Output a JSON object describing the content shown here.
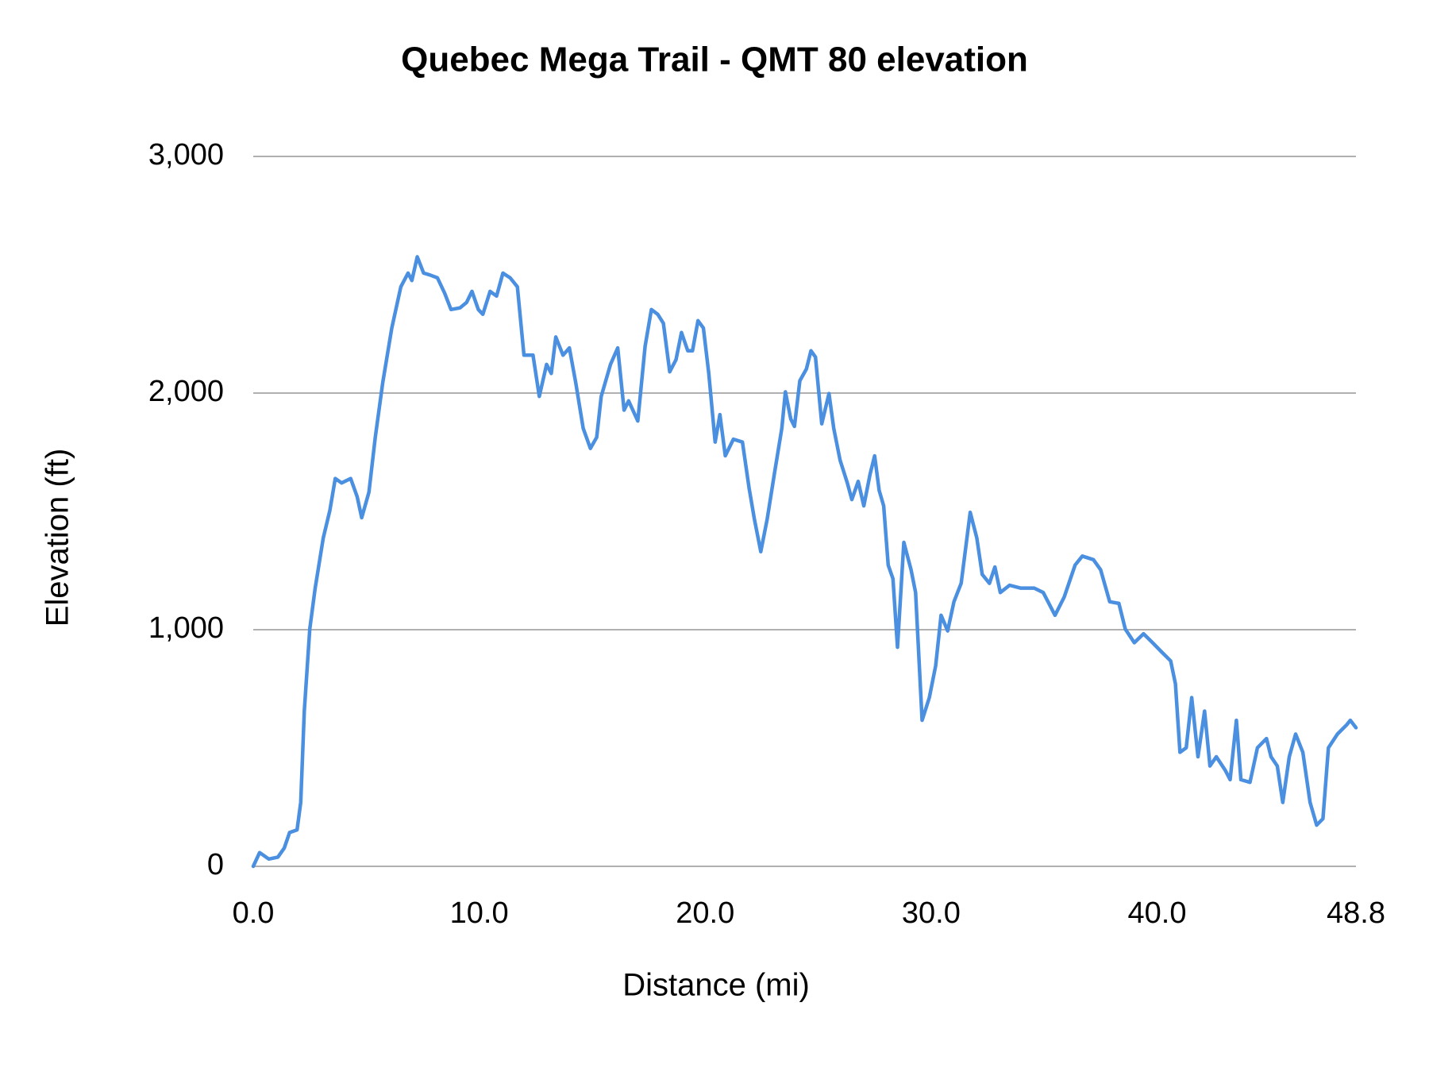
{
  "chart_data": {
    "type": "line",
    "title": "Quebec Mega Trail - QMT 80 elevation",
    "x_label": "Distance (mi)",
    "y_label": "Elevation (ft)",
    "color": "#4a8fe0",
    "grid": true,
    "xlim": [
      0,
      48.8
    ],
    "xticks": [
      {
        "value": 0,
        "label": "0.0"
      },
      {
        "value": 10,
        "label": "10.0"
      },
      {
        "value": 20,
        "label": "20.0"
      },
      {
        "value": 30,
        "label": "30.0"
      },
      {
        "value": 40,
        "label": "40.0"
      },
      48.8
    ],
    "ylim": [
      0,
      3000
    ],
    "yticks": [
      0,
      {
        "value": 1000,
        "label": "1,000"
      },
      {
        "value": 2000,
        "label": "2,000"
      },
      {
        "value": 3000,
        "label": "3,000"
      }
    ],
    "x": [
      0,
      0.28,
      0.69,
      1.09,
      1.37,
      1.61,
      1.94,
      2.1,
      2.26,
      2.5,
      2.74,
      3.1,
      3.39,
      3.63,
      3.91,
      4.31,
      4.6,
      4.8,
      5.12,
      5.4,
      5.73,
      6.13,
      6.53,
      6.85,
      7.02,
      7.26,
      7.54,
      7.82,
      8.15,
      8.47,
      8.75,
      9.15,
      9.44,
      9.68,
      9.96,
      10.16,
      10.48,
      10.77,
      11.05,
      11.37,
      11.69,
      11.98,
      12.38,
      12.66,
      12.98,
      13.19,
      13.39,
      13.71,
      13.99,
      14.27,
      14.6,
      14.92,
      15.2,
      15.4,
      15.81,
      16.13,
      16.41,
      16.61,
      17.02,
      17.34,
      17.62,
      17.9,
      18.15,
      18.43,
      18.71,
      18.95,
      19.23,
      19.44,
      19.68,
      19.92,
      20.16,
      20.44,
      20.65,
      20.89,
      21.25,
      21.65,
      21.94,
      22.18,
      22.46,
      22.74,
      23.06,
      23.39,
      23.55,
      23.79,
      23.95,
      24.19,
      24.48,
      24.68,
      24.88,
      25.16,
      25.48,
      25.69,
      25.97,
      26.29,
      26.49,
      26.77,
      27.02,
      27.3,
      27.5,
      27.7,
      27.9,
      28.1,
      28.31,
      28.51,
      28.79,
      29.11,
      29.31,
      29.6,
      29.92,
      30.2,
      30.44,
      30.73,
      31.01,
      31.33,
      31.73,
      32.02,
      32.26,
      32.58,
      32.82,
      33.06,
      33.47,
      33.95,
      34.56,
      34.96,
      35.48,
      35.89,
      36.37,
      36.69,
      37.18,
      37.5,
      37.9,
      38.31,
      38.59,
      38.99,
      39.4,
      39.8,
      40.2,
      40.6,
      40.81,
      41.01,
      41.29,
      41.53,
      41.81,
      42.1,
      42.34,
      42.62,
      43.02,
      43.23,
      43.51,
      43.71,
      44.11,
      44.44,
      44.84,
      45.04,
      45.32,
      45.56,
      45.85,
      46.13,
      46.45,
      46.77,
      47.06,
      47.34,
      47.58,
      47.98,
      48.39,
      48.55,
      48.8
    ],
    "values": [
      0,
      58,
      31,
      39,
      77,
      143,
      154,
      270,
      656,
      1003,
      1176,
      1388,
      1504,
      1639,
      1620,
      1639,
      1562,
      1473,
      1581,
      1813,
      2044,
      2275,
      2449,
      2507,
      2476,
      2576,
      2507,
      2499,
      2487,
      2422,
      2353,
      2360,
      2383,
      2430,
      2353,
      2333,
      2430,
      2410,
      2507,
      2487,
      2449,
      2160,
      2160,
      1986,
      2121,
      2083,
      2237,
      2160,
      2191,
      2044,
      1851,
      1766,
      1813,
      1986,
      2121,
      2191,
      1928,
      1967,
      1882,
      2198,
      2353,
      2333,
      2295,
      2090,
      2141,
      2256,
      2179,
      2179,
      2306,
      2275,
      2083,
      1793,
      1909,
      1735,
      1805,
      1793,
      1600,
      1466,
      1330,
      1466,
      1658,
      1851,
      2005,
      1890,
      1859,
      2052,
      2102,
      2179,
      2152,
      1870,
      1998,
      1851,
      1716,
      1620,
      1550,
      1627,
      1523,
      1658,
      1735,
      1589,
      1523,
      1273,
      1215,
      926,
      1369,
      1253,
      1157,
      617,
      713,
      848,
      1061,
      995,
      1118,
      1196,
      1496,
      1388,
      1234,
      1196,
      1265,
      1157,
      1188,
      1176,
      1176,
      1157,
      1061,
      1138,
      1273,
      1311,
      1296,
      1253,
      1118,
      1111,
      1003,
      945,
      983,
      945,
      906,
      868,
      771,
      482,
      501,
      713,
      463,
      656,
      424,
      463,
      405,
      366,
      617,
      366,
      355,
      501,
      540,
      463,
      424,
      270,
      463,
      559,
      482,
      270,
      174,
      201,
      501,
      559,
      598,
      617,
      586
    ]
  }
}
